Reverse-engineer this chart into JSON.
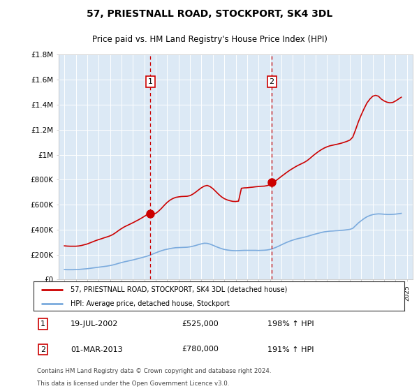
{
  "title": "57, PRIESTNALL ROAD, STOCKPORT, SK4 3DL",
  "subtitle": "Price paid vs. HM Land Registry's House Price Index (HPI)",
  "legend_line1": "57, PRIESTNALL ROAD, STOCKPORT, SK4 3DL (detached house)",
  "legend_line2": "HPI: Average price, detached house, Stockport",
  "footnote1": "Contains HM Land Registry data © Crown copyright and database right 2024.",
  "footnote2": "This data is licensed under the Open Government Licence v3.0.",
  "sale1_label": "1",
  "sale1_date": "19-JUL-2002",
  "sale1_price": "£525,000",
  "sale1_pct": "198% ↑ HPI",
  "sale1_year": 2002.54,
  "sale1_value": 525000,
  "sale2_label": "2",
  "sale2_date": "01-MAR-2013",
  "sale2_price": "£780,000",
  "sale2_pct": "191% ↑ HPI",
  "sale2_year": 2013.16,
  "sale2_value": 780000,
  "ylim": [
    0,
    1800000
  ],
  "ytick_values": [
    0,
    200000,
    400000,
    600000,
    800000,
    1000000,
    1200000,
    1400000,
    1600000,
    1800000
  ],
  "ytick_labels": [
    "£0",
    "£200K",
    "£400K",
    "£600K",
    "£800K",
    "£1M",
    "£1.2M",
    "£1.4M",
    "£1.6M",
    "£1.8M"
  ],
  "xlim_start": 1994.5,
  "xlim_end": 2025.5,
  "bg_color": "#dce9f5",
  "red_line_color": "#cc0000",
  "blue_line_color": "#7aaadd",
  "hpi_years": [
    1995.0,
    1995.25,
    1995.5,
    1995.75,
    1996.0,
    1996.25,
    1996.5,
    1996.75,
    1997.0,
    1997.25,
    1997.5,
    1997.75,
    1998.0,
    1998.25,
    1998.5,
    1998.75,
    1999.0,
    1999.25,
    1999.5,
    1999.75,
    2000.0,
    2000.25,
    2000.5,
    2000.75,
    2001.0,
    2001.25,
    2001.5,
    2001.75,
    2002.0,
    2002.25,
    2002.5,
    2002.75,
    2003.0,
    2003.25,
    2003.5,
    2003.75,
    2004.0,
    2004.25,
    2004.5,
    2004.75,
    2005.0,
    2005.25,
    2005.5,
    2005.75,
    2006.0,
    2006.25,
    2006.5,
    2006.75,
    2007.0,
    2007.25,
    2007.5,
    2007.75,
    2008.0,
    2008.25,
    2008.5,
    2008.75,
    2009.0,
    2009.25,
    2009.5,
    2009.75,
    2010.0,
    2010.25,
    2010.5,
    2010.75,
    2011.0,
    2011.25,
    2011.5,
    2011.75,
    2012.0,
    2012.25,
    2012.5,
    2012.75,
    2013.0,
    2013.25,
    2013.5,
    2013.75,
    2014.0,
    2014.25,
    2014.5,
    2014.75,
    2015.0,
    2015.25,
    2015.5,
    2015.75,
    2016.0,
    2016.25,
    2016.5,
    2016.75,
    2017.0,
    2017.25,
    2017.5,
    2017.75,
    2018.0,
    2018.25,
    2018.5,
    2018.75,
    2019.0,
    2019.25,
    2019.5,
    2019.75,
    2020.0,
    2020.25,
    2020.5,
    2020.75,
    2021.0,
    2021.25,
    2021.5,
    2021.75,
    2022.0,
    2022.25,
    2022.5,
    2022.75,
    2023.0,
    2023.25,
    2023.5,
    2023.75,
    2024.0,
    2024.25,
    2024.5
  ],
  "hpi_values": [
    80000,
    79000,
    79000,
    79000,
    80000,
    81000,
    83000,
    85000,
    87000,
    90000,
    93000,
    96000,
    99000,
    102000,
    105000,
    108000,
    112000,
    117000,
    123000,
    130000,
    136000,
    142000,
    147000,
    152000,
    157000,
    163000,
    169000,
    175000,
    181000,
    188000,
    196000,
    205000,
    214000,
    223000,
    231000,
    238000,
    243000,
    248000,
    252000,
    255000,
    256000,
    257000,
    258000,
    259000,
    262000,
    267000,
    273000,
    280000,
    286000,
    291000,
    290000,
    284000,
    275000,
    265000,
    256000,
    248000,
    241000,
    237000,
    234000,
    232000,
    231000,
    232000,
    233000,
    234000,
    234000,
    234000,
    234000,
    234000,
    233000,
    234000,
    235000,
    237000,
    241000,
    248000,
    257000,
    267000,
    278000,
    289000,
    299000,
    308000,
    316000,
    323000,
    329000,
    334000,
    339000,
    345000,
    352000,
    359000,
    365000,
    371000,
    377000,
    382000,
    385000,
    388000,
    389000,
    391000,
    392000,
    394000,
    396000,
    399000,
    402000,
    410000,
    432000,
    454000,
    472000,
    489000,
    503000,
    513000,
    520000,
    524000,
    526000,
    525000,
    523000,
    521000,
    521000,
    522000,
    524000,
    527000,
    530000
  ],
  "red_years": [
    1995.0,
    1995.25,
    1995.5,
    1995.75,
    1996.0,
    1996.25,
    1996.5,
    1996.75,
    1997.0,
    1997.25,
    1997.5,
    1997.75,
    1998.0,
    1998.25,
    1998.5,
    1998.75,
    1999.0,
    1999.25,
    1999.5,
    1999.75,
    2000.0,
    2000.25,
    2000.5,
    2000.75,
    2001.0,
    2001.25,
    2001.5,
    2001.75,
    2002.0,
    2002.25,
    2002.5,
    2002.75,
    2003.0,
    2003.25,
    2003.5,
    2003.75,
    2004.0,
    2004.25,
    2004.5,
    2004.75,
    2005.0,
    2005.25,
    2005.5,
    2005.75,
    2006.0,
    2006.25,
    2006.5,
    2006.75,
    2007.0,
    2007.25,
    2007.5,
    2007.75,
    2008.0,
    2008.25,
    2008.5,
    2008.75,
    2009.0,
    2009.25,
    2009.5,
    2009.75,
    2010.0,
    2010.25,
    2010.5,
    2010.75,
    2011.0,
    2011.25,
    2011.5,
    2011.75,
    2012.0,
    2012.25,
    2012.5,
    2012.75,
    2013.0,
    2013.25,
    2013.5,
    2013.75,
    2014.0,
    2014.25,
    2014.5,
    2014.75,
    2015.0,
    2015.25,
    2015.5,
    2015.75,
    2016.0,
    2016.25,
    2016.5,
    2016.75,
    2017.0,
    2017.25,
    2017.5,
    2017.75,
    2018.0,
    2018.25,
    2018.5,
    2018.75,
    2019.0,
    2019.25,
    2019.5,
    2019.75,
    2020.0,
    2020.25,
    2020.5,
    2020.75,
    2021.0,
    2021.25,
    2021.5,
    2021.75,
    2022.0,
    2022.25,
    2022.5,
    2022.75,
    2023.0,
    2023.25,
    2023.5,
    2023.75,
    2024.0,
    2024.25,
    2024.5
  ],
  "red_values": [
    270000,
    268000,
    267000,
    267000,
    267000,
    269000,
    273000,
    279000,
    285000,
    294000,
    303000,
    312000,
    320000,
    327000,
    335000,
    342000,
    350000,
    361000,
    376000,
    393000,
    408000,
    422000,
    433000,
    444000,
    455000,
    467000,
    479000,
    492000,
    506000,
    521000,
    525000,
    526000,
    530000,
    548000,
    570000,
    595000,
    618000,
    636000,
    649000,
    658000,
    662000,
    665000,
    666000,
    667000,
    672000,
    684000,
    700000,
    718000,
    735000,
    748000,
    754000,
    745000,
    728000,
    706000,
    683000,
    663000,
    648000,
    638000,
    631000,
    626000,
    625000,
    628000,
    731000,
    734000,
    735000,
    738000,
    740000,
    743000,
    745000,
    747000,
    748000,
    752000,
    759000,
    774000,
    790000,
    808000,
    826000,
    843000,
    860000,
    876000,
    890000,
    904000,
    916000,
    927000,
    938000,
    952000,
    970000,
    990000,
    1008000,
    1025000,
    1040000,
    1053000,
    1063000,
    1071000,
    1076000,
    1081000,
    1086000,
    1092000,
    1099000,
    1107000,
    1117000,
    1140000,
    1200000,
    1265000,
    1320000,
    1370000,
    1415000,
    1445000,
    1468000,
    1475000,
    1468000,
    1445000,
    1430000,
    1420000,
    1415000,
    1418000,
    1430000,
    1445000,
    1460000
  ]
}
